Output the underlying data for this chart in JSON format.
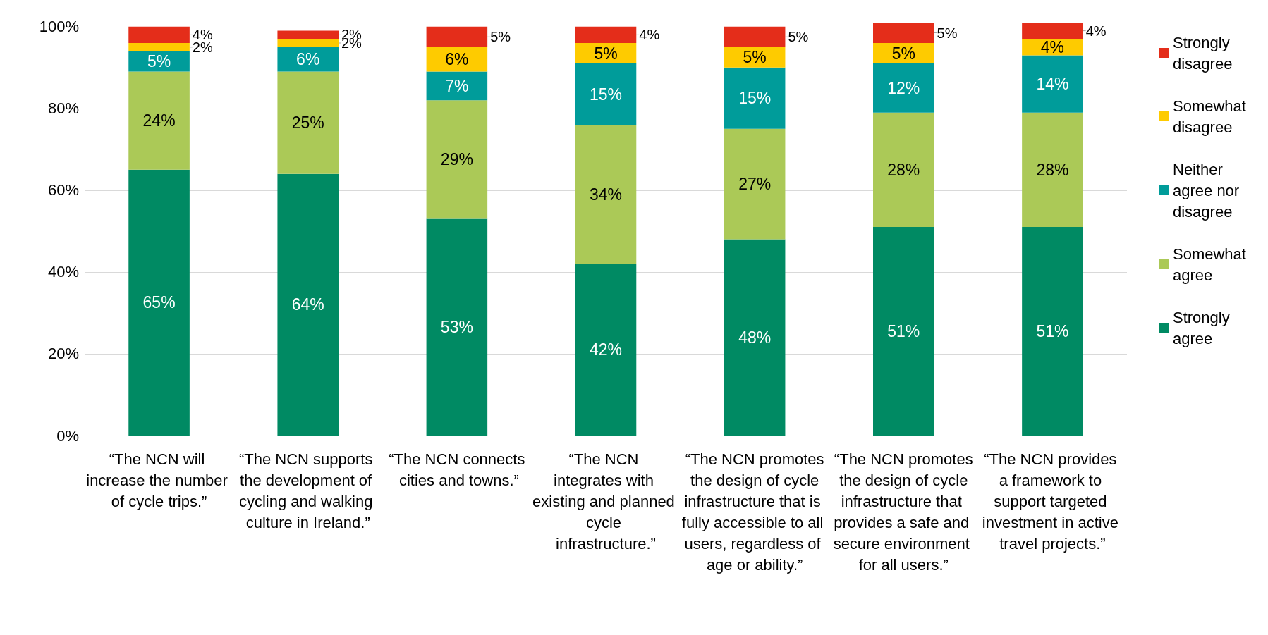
{
  "chart_data": {
    "type": "bar",
    "stacked": true,
    "categories": [
      "“The NCN will increase the number of cycle trips.”",
      "“The NCN supports the development of cycling and walking culture in Ireland.”",
      "“The NCN connects cities and towns.”",
      "“The NCN integrates with existing and planned cycle infrastructure.”",
      "“The NCN promotes the design of cycle infrastructure that is fully accessible to all users, regardless of age or ability.”",
      "“The NCN promotes the design of cycle infrastructure that provides a safe and secure environment for all users.”",
      "“The NCN provides a framework to support targeted investment in active travel projects.”"
    ],
    "series": [
      {
        "name": "Strongly agree",
        "color": "#008a63",
        "values": [
          65,
          64,
          53,
          42,
          48,
          51,
          51
        ],
        "value_labels": [
          "65%",
          "64%",
          "53%",
          "42%",
          "48%",
          "51%",
          "51%"
        ]
      },
      {
        "name": "Somewhat agree",
        "color": "#abc957",
        "values": [
          24,
          25,
          29,
          34,
          27,
          28,
          28
        ],
        "value_labels": [
          "24%",
          "25%",
          "29%",
          "34%",
          "27%",
          "28%",
          "28%"
        ]
      },
      {
        "name": "Neither agree nor disagree",
        "color": "#009c9a",
        "values": [
          5,
          6,
          7,
          15,
          15,
          12,
          14
        ],
        "value_labels": [
          "5%",
          "6%",
          "7%",
          "15%",
          "15%",
          "12%",
          "14%"
        ]
      },
      {
        "name": "Somewhat disagree",
        "color": "#fecb00",
        "values": [
          2,
          2,
          6,
          5,
          5,
          5,
          4
        ],
        "value_labels": [
          "2%",
          "2%",
          "6%",
          "5%",
          "5%",
          "5%",
          "4%"
        ]
      },
      {
        "name": "Strongly disagree",
        "color": "#e42d1a",
        "values": [
          4,
          2,
          5,
          4,
          5,
          5,
          4
        ],
        "value_labels": [
          "4%",
          "2%",
          "5%",
          "4%",
          "5%",
          "5%",
          "4%"
        ]
      }
    ],
    "ylim": [
      0,
      101
    ],
    "yticks": [
      {
        "value": 0,
        "label": "0%"
      },
      {
        "value": 20,
        "label": "20%"
      },
      {
        "value": 40,
        "label": "40%"
      },
      {
        "value": 60,
        "label": "60%"
      },
      {
        "value": 80,
        "label": "80%"
      },
      {
        "value": 100,
        "label": "100%"
      }
    ],
    "grid": "y",
    "legend": "right"
  }
}
